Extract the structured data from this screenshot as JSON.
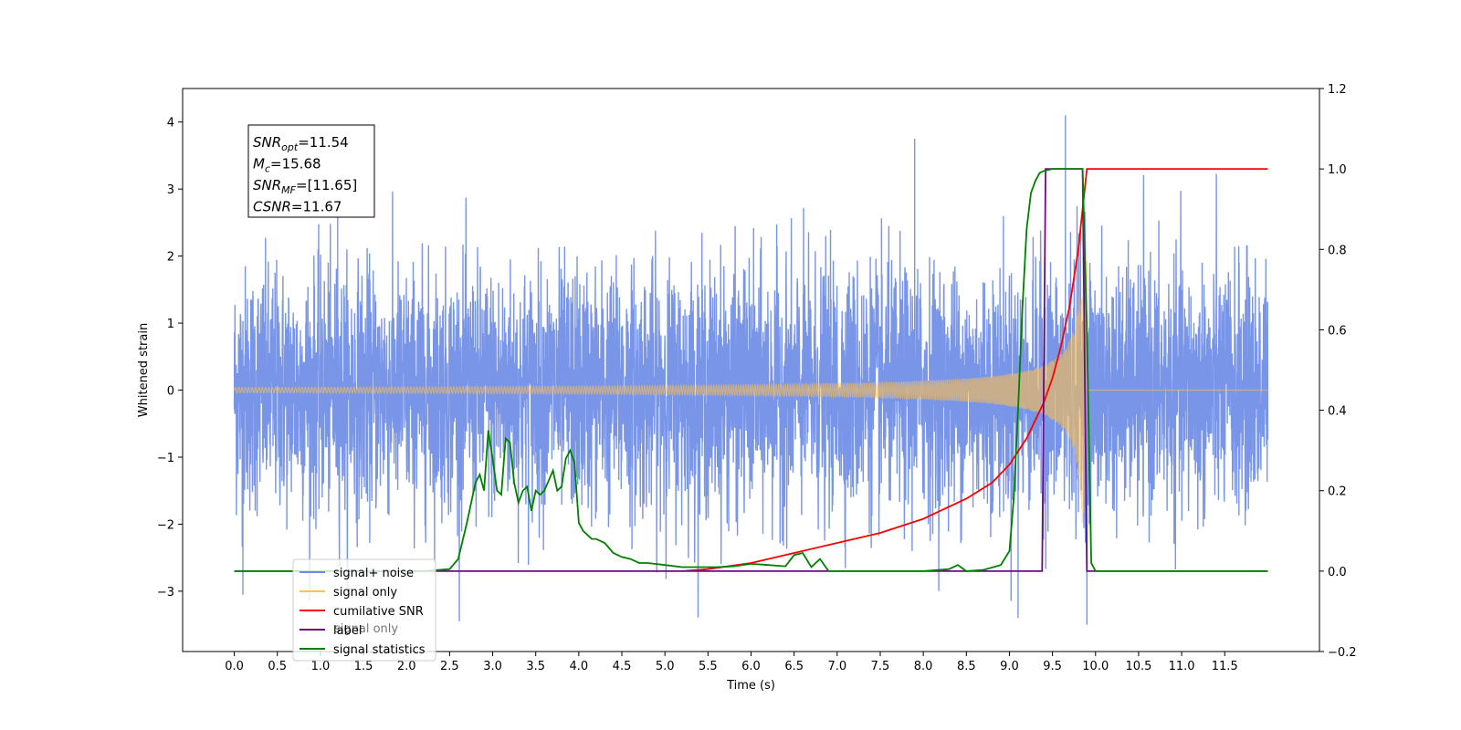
{
  "chart_data": {
    "type": "line",
    "title": "",
    "xlabel": "Time (s)",
    "ylabel_left": "Whitened strain",
    "ylabel_right": "",
    "xlim": [
      -0.6,
      12.6
    ],
    "ylim_left": [
      -3.9,
      4.5
    ],
    "ylim_right": [
      -0.2,
      1.2
    ],
    "x_ticks": [
      "0.0",
      "0.5",
      "1.0",
      "1.5",
      "2.0",
      "2.5",
      "3.0",
      "3.5",
      "4.0",
      "4.5",
      "5.0",
      "5.5",
      "6.0",
      "6.5",
      "7.0",
      "7.5",
      "8.0",
      "8.5",
      "9.0",
      "9.5",
      "10.0",
      "10.5",
      "11.0",
      "11.5"
    ],
    "y_ticks_left": [
      "4",
      "3",
      "2",
      "1",
      "0",
      "−1",
      "−2",
      "−3"
    ],
    "y_ticks_right": [
      "1.2",
      "1.0",
      "0.8",
      "0.6",
      "0.4",
      "0.2",
      "0.0",
      "−0.2"
    ],
    "grid": false,
    "legend_position": "lower-left",
    "annotation": {
      "lines": [
        {
          "var": "SNR",
          "sub": "opt",
          "value": "=11.54"
        },
        {
          "var": "M",
          "sub": "c",
          "value": "=15.68"
        },
        {
          "var": "SNR",
          "sub": "MF",
          "value": "=[11.65]"
        },
        {
          "var": "CSNR",
          "sub": "",
          "value": "=11.67"
        }
      ]
    },
    "series": [
      {
        "name": "signal+ noise",
        "axis": "left",
        "color": "#6a8ae6",
        "description_of_values": "white noise, std ~0.9, range approx -3.5 to 4.1 over t in [0, 12]",
        "x_range": [
          0,
          12
        ],
        "std": 0.9,
        "extremes": [
          [
            9.65,
            4.1
          ],
          [
            9.1,
            -3.4
          ],
          [
            9.9,
            -3.5
          ],
          [
            7.9,
            3.75
          ],
          [
            0.1,
            -3.05
          ],
          [
            1.2,
            3.5
          ]
        ]
      },
      {
        "name": "signal only",
        "color": "#ffc04d",
        "axis": "left",
        "chirp": {
          "t_merge": 9.9,
          "x_start": 0,
          "x_end": 12,
          "amp_peak": 2.0
        }
      },
      {
        "name": "cumilative SNR",
        "color": "#ff0000",
        "axis": "right",
        "x": [
          5.2,
          5.5,
          6.0,
          6.5,
          7.0,
          7.5,
          8.0,
          8.5,
          8.8,
          9.0,
          9.2,
          9.4,
          9.5,
          9.6,
          9.7,
          9.8,
          9.85,
          9.9,
          10.0,
          11.0,
          12.0
        ],
        "y": [
          0.0,
          0.005,
          0.02,
          0.045,
          0.07,
          0.095,
          0.13,
          0.18,
          0.22,
          0.265,
          0.33,
          0.42,
          0.48,
          0.56,
          0.66,
          0.8,
          0.9,
          1.0,
          1.0,
          1.0,
          1.0
        ]
      },
      {
        "name": "label",
        "color": "#6a0d83",
        "axis": "right",
        "x": [
          0.0,
          9.38,
          9.42,
          9.85,
          9.9,
          12.0
        ],
        "y": [
          0.0,
          0.0,
          1.0,
          1.0,
          0.0,
          0.0
        ]
      },
      {
        "name": "signal only",
        "color": "#ffc04d",
        "axis": "right",
        "hidden_legend_duplicate": true
      },
      {
        "name": "signal statistics",
        "color": "#008000",
        "axis": "right",
        "x": [
          0.0,
          2.2,
          2.5,
          2.6,
          2.7,
          2.8,
          2.85,
          2.9,
          2.95,
          3.0,
          3.05,
          3.1,
          3.15,
          3.2,
          3.25,
          3.3,
          3.35,
          3.4,
          3.45,
          3.5,
          3.55,
          3.6,
          3.7,
          3.75,
          3.8,
          3.85,
          3.9,
          3.95,
          4.0,
          4.05,
          4.1,
          4.15,
          4.2,
          4.3,
          4.4,
          4.5,
          4.6,
          4.7,
          4.8,
          5.0,
          5.2,
          5.4,
          5.6,
          5.8,
          6.0,
          6.2,
          6.4,
          6.5,
          6.6,
          6.7,
          6.8,
          6.9,
          7.0,
          7.5,
          8.0,
          8.3,
          8.4,
          8.5,
          8.7,
          8.9,
          9.0,
          9.05,
          9.1,
          9.15,
          9.2,
          9.25,
          9.3,
          9.35,
          9.4,
          9.5,
          9.6,
          9.7,
          9.8,
          9.85,
          9.9,
          9.95,
          10.0,
          12.0
        ],
        "y": [
          0.0,
          0.0,
          0.005,
          0.03,
          0.12,
          0.22,
          0.24,
          0.2,
          0.35,
          0.28,
          0.2,
          0.19,
          0.33,
          0.32,
          0.22,
          0.17,
          0.2,
          0.21,
          0.15,
          0.2,
          0.19,
          0.2,
          0.25,
          0.2,
          0.21,
          0.28,
          0.3,
          0.27,
          0.12,
          0.1,
          0.09,
          0.08,
          0.08,
          0.07,
          0.045,
          0.035,
          0.03,
          0.02,
          0.02,
          0.015,
          0.01,
          0.01,
          0.01,
          0.012,
          0.018,
          0.015,
          0.012,
          0.04,
          0.045,
          0.01,
          0.03,
          0.0,
          0.0,
          0.0,
          0.0,
          0.005,
          0.015,
          0.0,
          0.003,
          0.015,
          0.05,
          0.18,
          0.4,
          0.65,
          0.85,
          0.94,
          0.97,
          0.99,
          0.995,
          1.0,
          1.0,
          1.0,
          1.0,
          1.0,
          0.6,
          0.02,
          0.0,
          0.0
        ]
      }
    ],
    "legend": [
      {
        "label": "signal+ noise",
        "color": "#6a8ae6"
      },
      {
        "label": "signal only",
        "color": "#ffc04d"
      },
      {
        "label": "cumilative SNR",
        "color": "#ff0000"
      },
      {
        "label": "label",
        "color": "#6a0d83"
      },
      {
        "label": "signal statistics",
        "color": "#008000"
      }
    ],
    "legend_overlap_text": "signal only"
  }
}
